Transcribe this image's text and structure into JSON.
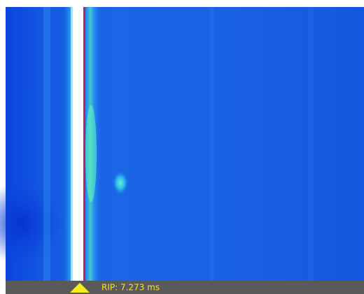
{
  "status_bar": {
    "label": "RIP: 7.273 ms"
  }
}
